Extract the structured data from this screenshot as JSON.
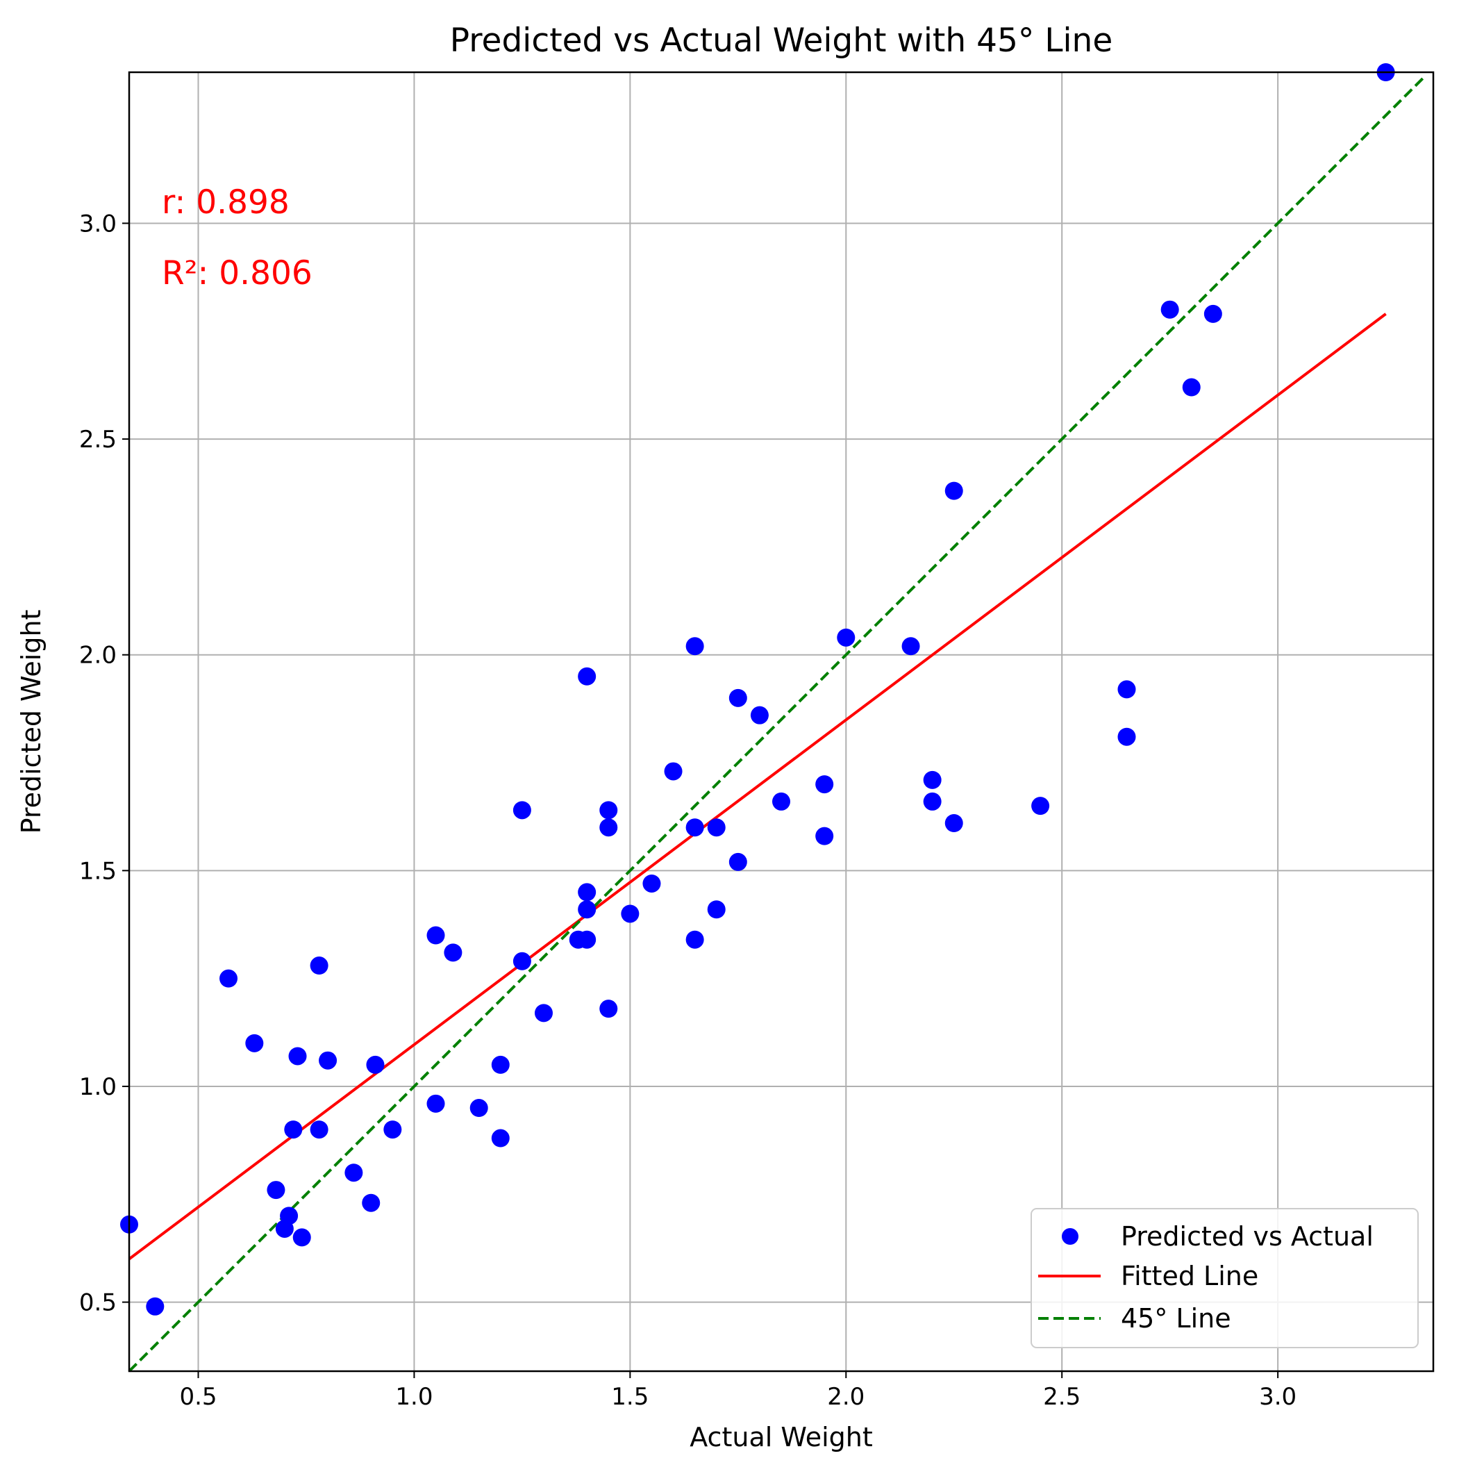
{
  "chart_data": {
    "type": "scatter",
    "title": "Predicted vs Actual Weight with 45° Line",
    "xlabel": "Actual Weight",
    "ylabel": "Predicted Weight",
    "xlim": [
      0.34,
      3.36
    ],
    "ylim": [
      0.34,
      3.35
    ],
    "grid": true,
    "x_ticks": [
      0.5,
      1.0,
      1.5,
      2.0,
      2.5,
      3.0
    ],
    "x_tick_labels": [
      "0.5",
      "1.0",
      "1.5",
      "2.0",
      "2.5",
      "3.0"
    ],
    "y_ticks": [
      0.5,
      1.0,
      1.5,
      2.0,
      2.5,
      3.0
    ],
    "y_tick_labels": [
      "0.5",
      "1.0",
      "1.5",
      "2.0",
      "2.5",
      "3.0"
    ],
    "series": [
      {
        "name": "Predicted vs Actual",
        "type": "scatter",
        "color": "#0000ff",
        "points": [
          [
            0.34,
            0.68
          ],
          [
            0.4,
            0.49
          ],
          [
            0.57,
            1.25
          ],
          [
            0.63,
            1.1
          ],
          [
            0.68,
            0.76
          ],
          [
            0.7,
            0.67
          ],
          [
            0.71,
            0.7
          ],
          [
            0.72,
            0.9
          ],
          [
            0.73,
            1.07
          ],
          [
            0.74,
            0.65
          ],
          [
            0.78,
            1.28
          ],
          [
            0.78,
            0.9
          ],
          [
            0.8,
            1.06
          ],
          [
            0.86,
            0.8
          ],
          [
            0.9,
            0.73
          ],
          [
            0.91,
            1.05
          ],
          [
            0.95,
            0.9
          ],
          [
            1.05,
            1.35
          ],
          [
            1.05,
            0.96
          ],
          [
            1.09,
            1.31
          ],
          [
            1.15,
            0.95
          ],
          [
            1.2,
            1.05
          ],
          [
            1.2,
            0.88
          ],
          [
            1.25,
            1.64
          ],
          [
            1.25,
            1.29
          ],
          [
            1.3,
            1.17
          ],
          [
            1.38,
            1.34
          ],
          [
            1.4,
            1.95
          ],
          [
            1.4,
            1.45
          ],
          [
            1.4,
            1.41
          ],
          [
            1.4,
            1.34
          ],
          [
            1.45,
            1.64
          ],
          [
            1.45,
            1.6
          ],
          [
            1.45,
            1.18
          ],
          [
            1.5,
            1.4
          ],
          [
            1.55,
            1.47
          ],
          [
            1.6,
            1.73
          ],
          [
            1.65,
            2.02
          ],
          [
            1.65,
            1.6
          ],
          [
            1.65,
            1.34
          ],
          [
            1.7,
            1.6
          ],
          [
            1.7,
            1.41
          ],
          [
            1.75,
            1.9
          ],
          [
            1.75,
            1.52
          ],
          [
            1.8,
            1.86
          ],
          [
            1.85,
            1.66
          ],
          [
            1.95,
            1.7
          ],
          [
            1.95,
            1.58
          ],
          [
            2.0,
            2.04
          ],
          [
            2.15,
            2.02
          ],
          [
            2.2,
            1.71
          ],
          [
            2.2,
            1.66
          ],
          [
            2.25,
            2.38
          ],
          [
            2.25,
            1.61
          ],
          [
            2.45,
            1.65
          ],
          [
            2.65,
            1.92
          ],
          [
            2.65,
            1.81
          ],
          [
            2.75,
            2.8
          ],
          [
            2.8,
            2.62
          ],
          [
            2.85,
            2.79
          ],
          [
            3.25,
            3.35
          ]
        ]
      },
      {
        "name": "Fitted Line",
        "type": "line",
        "color": "#ff0000",
        "style": "solid",
        "x": [
          0.34,
          3.25
        ],
        "y": [
          0.6,
          2.79
        ]
      },
      {
        "name": "45° Line",
        "type": "line",
        "color": "#008000",
        "style": "dashed",
        "x": [
          0.34,
          3.34
        ],
        "y": [
          0.34,
          3.34
        ]
      }
    ],
    "annotations": [
      {
        "text": "r: 0.898",
        "color": "#ff0000"
      },
      {
        "text": "R²: 0.806",
        "color": "#ff0000"
      }
    ],
    "legend": {
      "position": "lower-right",
      "entries": [
        "Predicted vs Actual",
        "Fitted Line",
        "45° Line"
      ]
    }
  }
}
